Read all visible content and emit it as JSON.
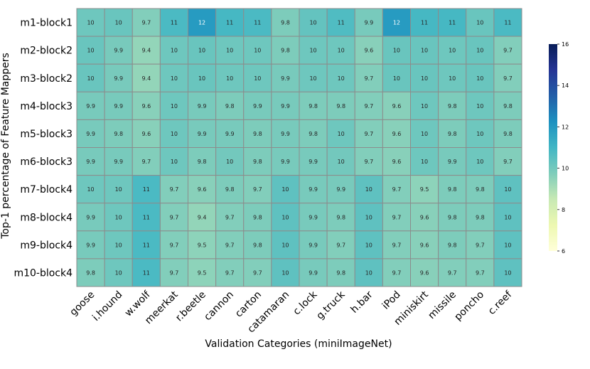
{
  "chart_data": {
    "type": "heatmap",
    "xlabel": "Validation Categories (miniImageNet)",
    "ylabel": "Top-1 percentage of Feature Mappers",
    "rows": [
      "m1-block1",
      "m2-block2",
      "m3-block2",
      "m4-block3",
      "m5-block3",
      "m6-block3",
      "m7-block4",
      "m8-block4",
      "m9-block4",
      "m10-block4"
    ],
    "columns": [
      "goose",
      "i.hound",
      "w.wolf",
      "meerkat",
      "r.beetle",
      "cannon",
      "carton",
      "catamaran",
      "c.lock",
      "g.truck",
      "h.bar",
      "iPod",
      "miniskirt",
      "missile",
      "poncho",
      "c.reef"
    ],
    "values": [
      [
        10,
        10,
        9.7,
        11,
        12,
        11,
        11,
        9.8,
        10,
        11,
        9.9,
        12,
        11,
        11,
        10,
        11
      ],
      [
        10,
        9.9,
        9.4,
        10,
        10,
        10,
        10,
        9.8,
        10,
        10,
        9.6,
        10,
        10,
        10,
        10,
        9.7
      ],
      [
        10,
        9.9,
        9.4,
        10,
        10,
        10,
        10,
        9.9,
        10,
        10,
        9.7,
        10,
        10,
        10,
        10,
        9.7
      ],
      [
        9.9,
        9.9,
        9.6,
        10,
        9.9,
        9.8,
        9.9,
        9.9,
        9.8,
        9.8,
        9.7,
        9.6,
        10,
        9.8,
        10,
        9.8
      ],
      [
        9.9,
        9.8,
        9.6,
        10,
        9.9,
        9.9,
        9.8,
        9.9,
        9.8,
        10,
        9.7,
        9.6,
        10,
        9.8,
        10,
        9.8
      ],
      [
        9.9,
        9.9,
        9.7,
        10,
        9.8,
        10,
        9.8,
        9.9,
        9.9,
        10,
        9.7,
        9.6,
        10,
        9.9,
        10,
        9.7
      ],
      [
        10,
        10,
        11,
        9.7,
        9.6,
        9.8,
        9.7,
        10,
        9.9,
        9.9,
        10,
        9.7,
        9.5,
        9.8,
        9.8,
        10
      ],
      [
        9.9,
        10,
        11,
        9.7,
        9.4,
        9.7,
        9.8,
        10,
        9.9,
        9.8,
        10,
        9.7,
        9.6,
        9.8,
        9.8,
        10
      ],
      [
        9.9,
        10,
        11,
        9.7,
        9.5,
        9.7,
        9.8,
        10,
        9.9,
        9.7,
        10,
        9.7,
        9.6,
        9.8,
        9.7,
        10
      ],
      [
        9.8,
        10,
        11,
        9.7,
        9.5,
        9.7,
        9.7,
        10,
        9.9,
        9.8,
        10,
        9.7,
        9.6,
        9.7,
        9.7,
        10
      ]
    ],
    "precise_values": [
      [
        10.1,
        10.2,
        9.7,
        10.8,
        11.9,
        10.9,
        10.8,
        9.8,
        10.3,
        10.7,
        9.9,
        11.9,
        10.9,
        10.9,
        10.2,
        10.8
      ],
      [
        10.2,
        9.9,
        9.4,
        10.1,
        10.2,
        10.1,
        10.1,
        9.8,
        10.1,
        10.1,
        9.6,
        10.2,
        10.2,
        10.1,
        10.2,
        9.7
      ],
      [
        10.2,
        9.9,
        9.4,
        10.1,
        10.2,
        10.1,
        10.1,
        9.9,
        10.1,
        10.1,
        9.7,
        10.2,
        10.2,
        10.1,
        10.2,
        9.7
      ],
      [
        9.9,
        9.9,
        9.6,
        10.1,
        9.9,
        9.8,
        9.9,
        9.9,
        9.8,
        9.8,
        9.7,
        9.6,
        10.1,
        9.8,
        10.1,
        9.8
      ],
      [
        9.9,
        9.8,
        9.6,
        10.1,
        9.9,
        9.9,
        9.8,
        9.9,
        9.8,
        10.1,
        9.7,
        9.6,
        10.1,
        9.8,
        10.1,
        9.8
      ],
      [
        9.9,
        9.9,
        9.7,
        10.1,
        9.8,
        10.0,
        9.8,
        9.9,
        9.9,
        10.0,
        9.7,
        9.6,
        10.1,
        9.9,
        10.1,
        9.7
      ],
      [
        10.1,
        10.1,
        10.8,
        9.7,
        9.6,
        9.8,
        9.7,
        10.4,
        9.9,
        9.9,
        10.4,
        9.7,
        9.5,
        9.8,
        9.8,
        10.4
      ],
      [
        9.9,
        10.1,
        10.8,
        9.7,
        9.4,
        9.7,
        9.8,
        10.4,
        9.9,
        9.8,
        10.4,
        9.7,
        9.6,
        9.8,
        9.8,
        10.4
      ],
      [
        9.9,
        10.1,
        10.8,
        9.7,
        9.5,
        9.7,
        9.8,
        10.4,
        9.9,
        9.7,
        10.4,
        9.7,
        9.6,
        9.8,
        9.7,
        10.4
      ],
      [
        9.8,
        10.1,
        10.8,
        9.7,
        9.5,
        9.7,
        9.7,
        10.4,
        9.9,
        9.8,
        10.4,
        9.7,
        9.6,
        9.7,
        9.7,
        10.4
      ]
    ],
    "vmin": 6,
    "vmax": 16,
    "colormap": "YlGnBu",
    "colormap_stops": [
      "#ffffd9",
      "#edf8b1",
      "#c7e9b4",
      "#7fcdbb",
      "#41b6c4",
      "#1d91c0",
      "#225ea8",
      "#253494",
      "#081d58"
    ],
    "colorbar": {
      "ticks": [
        6,
        8,
        10,
        12,
        14,
        16
      ],
      "placement": "right"
    },
    "grid_color": "#8c8c8c"
  }
}
